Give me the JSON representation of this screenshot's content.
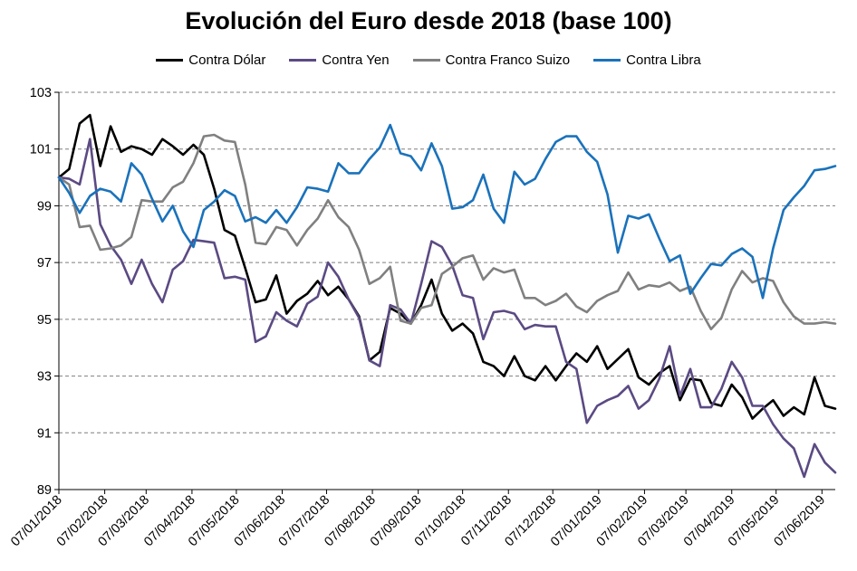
{
  "chart_data": {
    "type": "line",
    "title": "Evolución del Euro desde 2018 (base 100)",
    "xlabel": "",
    "ylabel": "",
    "ylim": [
      89,
      103
    ],
    "yticks": [
      89,
      91,
      93,
      95,
      97,
      99,
      101,
      103
    ],
    "grid": "horizontal dashed",
    "legend": "top",
    "x_tick_labels": [
      "07/01/2018",
      "07/02/2018",
      "07/03/2018",
      "07/04/2018",
      "07/05/2018",
      "07/06/2018",
      "07/07/2018",
      "07/08/2018",
      "07/09/2018",
      "07/10/2018",
      "07/11/2018",
      "07/12/2018",
      "07/01/2019",
      "07/02/2019",
      "07/03/2019",
      "07/04/2019",
      "07/05/2019",
      "07/06/2019"
    ],
    "x_start": "2018-01-07",
    "x_step_days": 7,
    "series": [
      {
        "name": "Contra Dólar",
        "color": "#000000",
        "values": [
          100.0,
          100.3,
          101.9,
          102.2,
          100.4,
          101.8,
          100.9,
          101.1,
          101.0,
          100.8,
          101.35,
          101.1,
          100.8,
          101.15,
          100.8,
          99.6,
          98.15,
          97.95,
          96.8,
          95.6,
          95.7,
          96.55,
          95.2,
          95.65,
          95.9,
          96.35,
          95.85,
          96.15,
          95.7,
          95.1,
          93.55,
          93.85,
          95.4,
          95.2,
          94.85,
          95.5,
          96.4,
          95.2,
          94.6,
          94.85,
          94.5,
          93.5,
          93.35,
          93.0,
          93.7,
          93.0,
          92.85,
          93.35,
          92.85,
          93.35,
          93.8,
          93.5,
          94.05,
          93.25,
          93.6,
          93.95,
          92.95,
          92.7,
          93.1,
          93.35,
          92.15,
          92.9,
          92.85,
          92.05,
          91.95,
          92.7,
          92.25,
          91.5,
          91.85,
          92.15,
          91.6,
          91.9,
          91.65,
          92.95,
          91.95,
          91.85
        ]
      },
      {
        "name": "Contra Yen",
        "color": "#5b4a83",
        "values": [
          100.0,
          99.95,
          99.75,
          101.35,
          98.35,
          97.6,
          97.1,
          96.25,
          97.1,
          96.25,
          95.6,
          96.75,
          97.05,
          97.8,
          97.75,
          97.7,
          96.45,
          96.5,
          96.4,
          94.2,
          94.4,
          95.25,
          94.95,
          94.75,
          95.55,
          95.8,
          97.0,
          96.5,
          95.7,
          95.05,
          93.55,
          93.35,
          95.5,
          95.35,
          94.85,
          96.25,
          97.75,
          97.55,
          96.9,
          95.85,
          95.75,
          94.3,
          95.25,
          95.3,
          95.2,
          94.65,
          94.8,
          94.75,
          94.75,
          93.5,
          93.25,
          91.35,
          91.95,
          92.15,
          92.3,
          92.65,
          91.85,
          92.15,
          92.9,
          94.05,
          92.3,
          93.25,
          91.9,
          91.9,
          92.55,
          93.5,
          92.95,
          91.95,
          91.95,
          91.3,
          90.8,
          90.45,
          89.45,
          90.6,
          89.95,
          89.6
        ]
      },
      {
        "name": "Contra Franco Suizo",
        "color": "#808080",
        "values": [
          100.0,
          99.75,
          98.25,
          98.3,
          97.45,
          97.5,
          97.6,
          97.9,
          99.2,
          99.15,
          99.15,
          99.65,
          99.85,
          100.5,
          101.45,
          101.5,
          101.3,
          101.25,
          99.75,
          97.7,
          97.65,
          98.25,
          98.15,
          97.6,
          98.15,
          98.55,
          99.2,
          98.6,
          98.25,
          97.45,
          96.25,
          96.45,
          96.85,
          94.95,
          94.85,
          95.4,
          95.5,
          96.6,
          96.85,
          97.15,
          97.25,
          96.4,
          96.8,
          96.65,
          96.75,
          95.75,
          95.75,
          95.5,
          95.65,
          95.9,
          95.45,
          95.25,
          95.65,
          95.85,
          96.0,
          96.65,
          96.05,
          96.2,
          96.15,
          96.3,
          96.0,
          96.15,
          95.3,
          94.65,
          95.05,
          96.05,
          96.7,
          96.3,
          96.45,
          96.35,
          95.6,
          95.1,
          94.85,
          94.85,
          94.9,
          94.85
        ]
      },
      {
        "name": "Contra Libra",
        "color": "#1a72bb",
        "values": [
          100.0,
          99.45,
          98.75,
          99.35,
          99.6,
          99.5,
          99.15,
          100.5,
          100.1,
          99.25,
          98.45,
          99.0,
          98.1,
          97.55,
          98.85,
          99.15,
          99.55,
          99.35,
          98.45,
          98.6,
          98.4,
          98.85,
          98.4,
          98.95,
          99.65,
          99.6,
          99.5,
          100.5,
          100.15,
          100.15,
          100.65,
          101.05,
          101.85,
          100.85,
          100.75,
          100.25,
          101.2,
          100.4,
          98.9,
          98.95,
          99.2,
          100.1,
          98.9,
          98.4,
          100.2,
          99.75,
          99.95,
          100.65,
          101.25,
          101.45,
          101.45,
          100.9,
          100.55,
          99.4,
          97.35,
          98.65,
          98.55,
          98.7,
          97.85,
          97.05,
          97.25,
          95.9,
          96.45,
          96.95,
          96.9,
          97.3,
          97.5,
          97.2,
          95.75,
          97.5,
          98.85,
          99.3,
          99.7,
          100.25,
          100.3,
          100.4
        ]
      }
    ]
  }
}
